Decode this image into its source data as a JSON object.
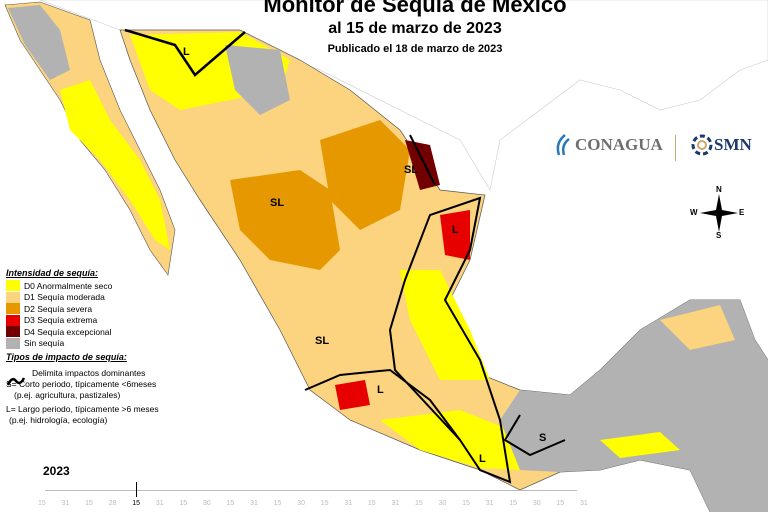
{
  "header": {
    "title": "Monitor de Sequía de México",
    "date": "al 15 de marzo de 2023",
    "published": "Publicado el 18 de marzo de 2023"
  },
  "legend": {
    "intensity_title": "Intensidad de sequía:",
    "items": [
      {
        "label": "D0 Anormalmente seco",
        "color": "#ffff00"
      },
      {
        "label": "D1 Sequía moderada",
        "color": "#fcd37f"
      },
      {
        "label": "D2 Sequía severa",
        "color": "#e69800"
      },
      {
        "label": "D3 Sequía extrema",
        "color": "#e60000"
      },
      {
        "label": "D4 Sequía excepcional",
        "color": "#730000"
      },
      {
        "label": "Sin sequía",
        "color": "#b2b2b2"
      }
    ],
    "impact_title": "Tipos de impacto de sequía:",
    "impact_line": "Delimita impactos dominantes",
    "short": "S= Corto periodo, típicamente <6meses",
    "short_ex": "(p.ej. agricultura, pastizales)",
    "long": "L= Largo periodo, típicamente >6 meses",
    "long_ex": "(p.ej. hidrología, ecología)"
  },
  "map_labels": {
    "L": "L",
    "S": "S",
    "SL": "SL"
  },
  "logos": {
    "conagua": "CONAGUA",
    "smn": "SMN"
  },
  "compass": {
    "n": "N",
    "s": "S",
    "e": "E",
    "w": "W"
  },
  "timeline": {
    "year": "2023",
    "ticks": [
      "15",
      "31",
      "15",
      "28",
      "15",
      "31",
      "15",
      "30",
      "15",
      "31",
      "15",
      "30",
      "15",
      "31",
      "15",
      "31",
      "15",
      "30",
      "15",
      "31",
      "15",
      "30",
      "15",
      "31"
    ],
    "current_index": 4
  }
}
